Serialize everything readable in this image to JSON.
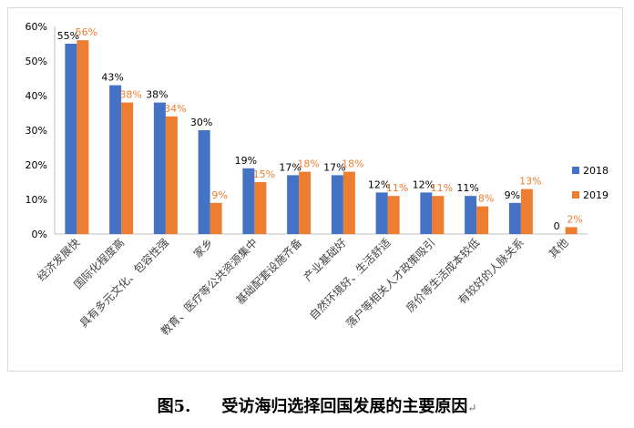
{
  "chart_data": {
    "type": "bar",
    "categories": [
      "经济发展快",
      "国际化程度高",
      "具有多元文化、包容性强",
      "家乡",
      "教育、医疗等公共资源集中",
      "基础配套设施齐备",
      "产业基础好",
      "自然环境好、生活舒适",
      "落户等相关人才政策吸引",
      "房价等生活成本较低",
      "有较好的人脉关系",
      "其他"
    ],
    "series": [
      {
        "name": "2018",
        "color": "#4472C4",
        "values": [
          55,
          43,
          38,
          30,
          19,
          17,
          17,
          12,
          12,
          11,
          9,
          0
        ],
        "labels": [
          "55%",
          "43%",
          "38%",
          "30%",
          "19%",
          "17%",
          "17%",
          "12%",
          "12%",
          "11%",
          "9%",
          "0"
        ]
      },
      {
        "name": "2019",
        "color": "#ED7D31",
        "values": [
          56,
          38,
          34,
          9,
          15,
          18,
          18,
          11,
          11,
          8,
          13,
          2
        ],
        "labels": [
          "56%",
          "38%",
          "34%",
          "9%",
          "15%",
          "18%",
          "18%",
          "11%",
          "11%",
          "8%",
          "13%",
          "2%"
        ]
      }
    ],
    "y_ticks": [
      "0%",
      "10%",
      "20%",
      "30%",
      "40%",
      "50%",
      "60%"
    ],
    "ylim": [
      0,
      60
    ],
    "grid": false,
    "legend_position": "right"
  },
  "caption": {
    "figure_label": "图5.",
    "title": "受访海归选择回国发展的主要原因"
  }
}
